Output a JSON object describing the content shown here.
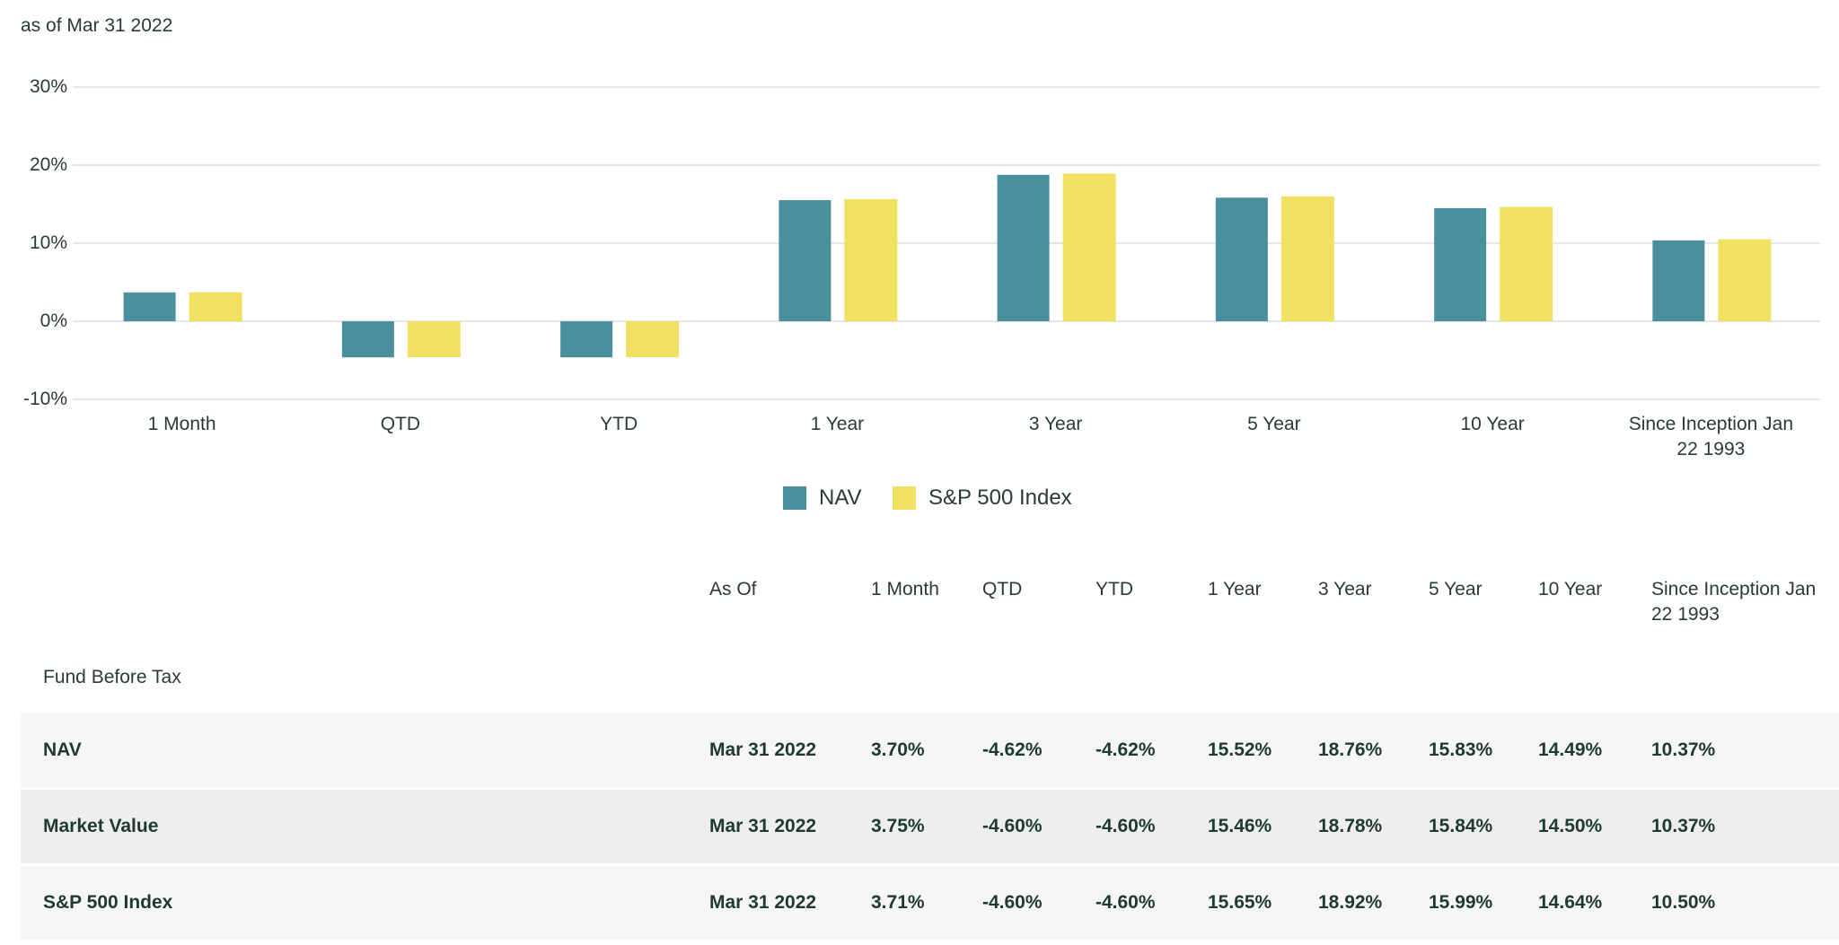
{
  "chart_data": {
    "type": "bar",
    "subtitle": "as of Mar 31 2022",
    "categories": [
      "1 Month",
      "QTD",
      "YTD",
      "1 Year",
      "3 Year",
      "5 Year",
      "10 Year",
      "Since Inception Jan 22 1993"
    ],
    "series": [
      {
        "name": "NAV",
        "color": "#4a8f9e",
        "values": [
          3.7,
          -4.62,
          -4.62,
          15.52,
          18.76,
          15.83,
          14.49,
          10.37
        ]
      },
      {
        "name": "S&P 500 Index",
        "color": "#f2e063",
        "values": [
          3.71,
          -4.6,
          -4.6,
          15.65,
          18.92,
          15.99,
          14.64,
          10.5
        ]
      }
    ],
    "ylim": [
      -10,
      30
    ],
    "yticks": [
      {
        "value": -10,
        "label": "-10%"
      },
      {
        "value": 0,
        "label": "0%"
      },
      {
        "value": 10,
        "label": "10%"
      },
      {
        "value": 20,
        "label": "20%"
      },
      {
        "value": 30,
        "label": "30%"
      }
    ],
    "grid": true,
    "legend": "bottom"
  },
  "table": {
    "header": [
      "As Of",
      "1 Month",
      "QTD",
      "YTD",
      "1 Year",
      "3 Year",
      "5 Year",
      "10 Year",
      "Since Inception Jan 22 1993"
    ],
    "section": "Fund Before Tax",
    "rows": [
      {
        "label": "NAV",
        "cells": [
          "Mar 31 2022",
          "3.70%",
          "-4.62%",
          "-4.62%",
          "15.52%",
          "18.76%",
          "15.83%",
          "14.49%",
          "10.37%"
        ]
      },
      {
        "label": "Market Value",
        "cells": [
          "Mar 31 2022",
          "3.75%",
          "-4.60%",
          "-4.60%",
          "15.46%",
          "18.78%",
          "15.84%",
          "14.50%",
          "10.37%"
        ]
      },
      {
        "label": "S&P 500 Index",
        "cells": [
          "Mar 31 2022",
          "3.71%",
          "-4.60%",
          "-4.60%",
          "15.65%",
          "18.92%",
          "15.99%",
          "14.64%",
          "10.50%"
        ]
      }
    ]
  }
}
